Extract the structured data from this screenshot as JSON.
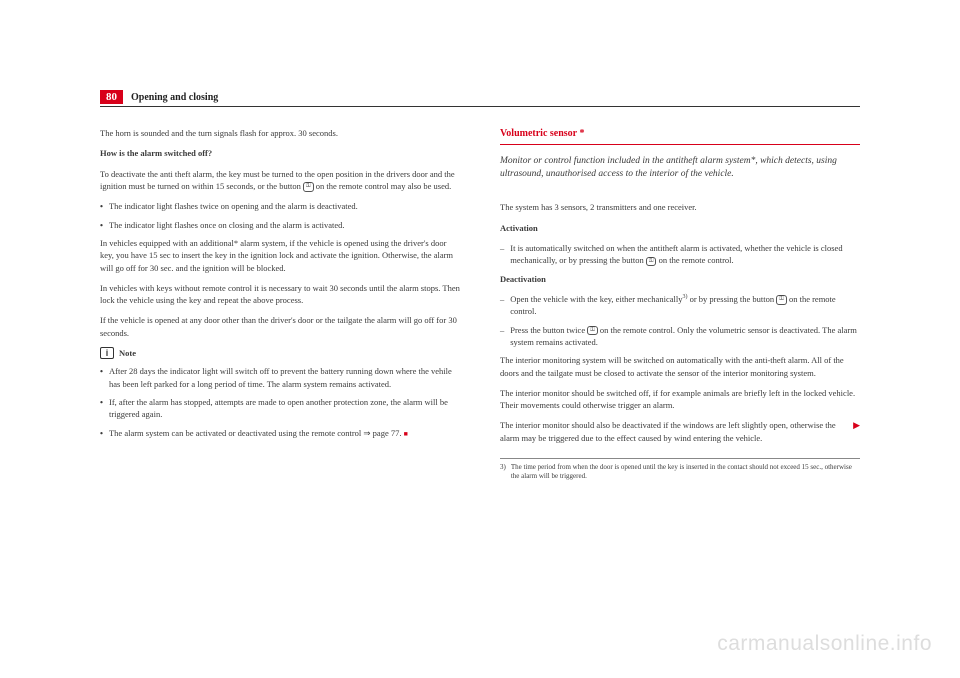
{
  "header": {
    "page_number": "80",
    "section": "Opening and closing"
  },
  "left": {
    "p1": "The horn is sounded and the turn signals flash for approx. 30 seconds.",
    "h1": "How is the alarm switched off?",
    "p2a": "To deactivate the anti theft alarm, the key must be turned to the open position in the drivers door and the ignition must be turned on within 15 seconds, or the button ",
    "p2b": " on the remote control may also be used.",
    "b1": "The indicator light flashes twice on opening and the alarm is deactivated.",
    "b2": "The indicator light flashes once on closing and the alarm is activated.",
    "p3": "In vehicles equipped with an additional* alarm system, if the vehicle is opened using the driver's door key, you have 15 sec to insert the key in the ignition lock and activate the ignition. Otherwise, the alarm will go off for 30 sec. and the ignition will be blocked.",
    "p4": "In vehicles with keys without remote control it is necessary to wait 30 seconds until the alarm stops. Then lock the vehicle using the key and repeat the above process.",
    "p5": "If the vehicle is opened at any door other than the driver's door or the tailgate the alarm will go off for 30 seconds.",
    "note_label": "Note",
    "n1": "After 28 days the indicator light will switch off to prevent the battery running down where the vehile has been left parked for a long period of time. The alarm system remains activated.",
    "n2": "If, after the alarm has stopped, attempts are made to open another protection zone, the alarm will be triggered again.",
    "n3a": "The alarm system can be activated or deactivated using the remote control ",
    "n3b": "⇒ page 77."
  },
  "right": {
    "title": "Volumetric sensor *",
    "intro": "Monitor or control function included in the antitheft alarm system*, which detects, using ultrasound, unauthorised access to the interior of the vehicle.",
    "p1": "The system has 3 sensors, 2 transmitters and one receiver.",
    "h_act": "Activation",
    "a1a": "It is automatically switched on when the antitheft alarm is activated, whether the vehicle is closed mechanically, or by pressing the button ",
    "a1b": " on the remote control.",
    "h_deact": "Deactivation",
    "d1a": "Open the vehicle with the key, either mechanically",
    "d1b": " or by pressing the button ",
    "d1c": " on the remote control.",
    "d2a": "Press the button twice ",
    "d2b": " on the remote control. Only the volumetric sensor is deactivated. The alarm system remains activated.",
    "p2": "The interior monitoring system will be switched on automatically with the anti-theft alarm. All of the doors and the tailgate must be closed to activate the sensor of the interior monitoring system.",
    "p3": "The interior monitor should be switched off, if for example animals are briefly left in the locked vehicle. Their movements could otherwise trigger an alarm.",
    "p4": "The interior monitor should also be deactivated if the windows are left slightly open, otherwise the alarm may be triggered due to the effect caused by wind entering the vehicle.",
    "fn_num": "3)",
    "fn": "The time period from when the door is opened until the key is inserted in the contact should not exceed 15 sec., otherwise the alarm will be triggered."
  },
  "watermark": "carmanualsonline.info",
  "icons": {
    "unlock": "⚿",
    "lock": "⚿"
  }
}
